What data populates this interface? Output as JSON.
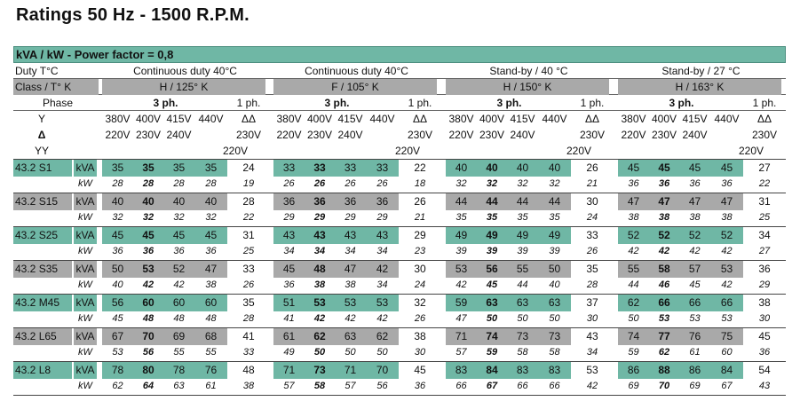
{
  "title": "Ratings 50 Hz - 1500 R.P.M.",
  "banner": "kVA / kW - Power factor = 0,8",
  "duty_label": "Duty T°C",
  "duties": [
    "Continuous duty 40°C",
    "Continuous duty 40°C",
    "Stand-by / 40 °C",
    "Stand-by / 27 °C"
  ],
  "class_label": "Class / T° K",
  "classes": [
    "H / 125° K",
    "F / 105° K",
    "H / 150° K",
    "H / 163° K"
  ],
  "phase_label": "Phase",
  "three_ph": "3 ph.",
  "one_ph": "1 ph.",
  "conn_y": "Y",
  "conn_delta": "Δ",
  "conn_yy": "YY",
  "y_volts": [
    "380V",
    "400V",
    "415V",
    "440V",
    "ΔΔ"
  ],
  "delta_volts": [
    "220V",
    "230V",
    "240V",
    "",
    "230V"
  ],
  "yy_volt": "220V",
  "unit_kva": "kVA",
  "unit_kw": "kW",
  "colors": {
    "accent": "#6fb7a5",
    "grey": "#a9a9a9"
  },
  "rows": [
    {
      "model": "43.2 S1",
      "kva": [
        [
          "35",
          "35",
          "35",
          "35",
          "24"
        ],
        [
          "33",
          "33",
          "33",
          "33",
          "22"
        ],
        [
          "40",
          "40",
          "40",
          "40",
          "26"
        ],
        [
          "45",
          "45",
          "45",
          "45",
          "27"
        ]
      ],
      "kw": [
        [
          "28",
          "28",
          "28",
          "28",
          "19"
        ],
        [
          "26",
          "26",
          "26",
          "26",
          "18"
        ],
        [
          "32",
          "32",
          "32",
          "32",
          "21"
        ],
        [
          "36",
          "36",
          "36",
          "36",
          "22"
        ]
      ]
    },
    {
      "model": "43.2 S15",
      "kva": [
        [
          "40",
          "40",
          "40",
          "40",
          "28"
        ],
        [
          "36",
          "36",
          "36",
          "36",
          "26"
        ],
        [
          "44",
          "44",
          "44",
          "44",
          "30"
        ],
        [
          "47",
          "47",
          "47",
          "47",
          "31"
        ]
      ],
      "kw": [
        [
          "32",
          "32",
          "32",
          "32",
          "22"
        ],
        [
          "29",
          "29",
          "29",
          "29",
          "21"
        ],
        [
          "35",
          "35",
          "35",
          "35",
          "24"
        ],
        [
          "38",
          "38",
          "38",
          "38",
          "25"
        ]
      ]
    },
    {
      "model": "43.2 S25",
      "kva": [
        [
          "45",
          "45",
          "45",
          "45",
          "31"
        ],
        [
          "43",
          "43",
          "43",
          "43",
          "29"
        ],
        [
          "49",
          "49",
          "49",
          "49",
          "33"
        ],
        [
          "52",
          "52",
          "52",
          "52",
          "34"
        ]
      ],
      "kw": [
        [
          "36",
          "36",
          "36",
          "36",
          "25"
        ],
        [
          "34",
          "34",
          "34",
          "34",
          "23"
        ],
        [
          "39",
          "39",
          "39",
          "39",
          "26"
        ],
        [
          "42",
          "42",
          "42",
          "42",
          "27"
        ]
      ]
    },
    {
      "model": "43.2 S35",
      "kva": [
        [
          "50",
          "53",
          "52",
          "47",
          "33"
        ],
        [
          "45",
          "48",
          "47",
          "42",
          "30"
        ],
        [
          "53",
          "56",
          "55",
          "50",
          "35"
        ],
        [
          "55",
          "58",
          "57",
          "53",
          "36"
        ]
      ],
      "kw": [
        [
          "40",
          "42",
          "42",
          "38",
          "26"
        ],
        [
          "36",
          "38",
          "38",
          "34",
          "24"
        ],
        [
          "42",
          "45",
          "44",
          "40",
          "28"
        ],
        [
          "44",
          "46",
          "45",
          "42",
          "29"
        ]
      ]
    },
    {
      "model": "43.2 M45",
      "kva": [
        [
          "56",
          "60",
          "60",
          "60",
          "35"
        ],
        [
          "51",
          "53",
          "53",
          "53",
          "32"
        ],
        [
          "59",
          "63",
          "63",
          "63",
          "37"
        ],
        [
          "62",
          "66",
          "66",
          "66",
          "38"
        ]
      ],
      "kw": [
        [
          "45",
          "48",
          "48",
          "48",
          "28"
        ],
        [
          "41",
          "42",
          "42",
          "42",
          "26"
        ],
        [
          "47",
          "50",
          "50",
          "50",
          "30"
        ],
        [
          "50",
          "53",
          "53",
          "53",
          "30"
        ]
      ]
    },
    {
      "model": "43.2 L65",
      "kva": [
        [
          "67",
          "70",
          "69",
          "68",
          "41"
        ],
        [
          "61",
          "62",
          "63",
          "62",
          "38"
        ],
        [
          "71",
          "74",
          "73",
          "73",
          "43"
        ],
        [
          "74",
          "77",
          "76",
          "75",
          "45"
        ]
      ],
      "kw": [
        [
          "53",
          "56",
          "55",
          "55",
          "33"
        ],
        [
          "49",
          "50",
          "50",
          "50",
          "30"
        ],
        [
          "57",
          "59",
          "58",
          "58",
          "34"
        ],
        [
          "59",
          "62",
          "61",
          "60",
          "36"
        ]
      ]
    },
    {
      "model": "43.2 L8",
      "kva": [
        [
          "78",
          "80",
          "78",
          "76",
          "48"
        ],
        [
          "71",
          "73",
          "71",
          "70",
          "45"
        ],
        [
          "83",
          "84",
          "83",
          "83",
          "53"
        ],
        [
          "86",
          "88",
          "86",
          "84",
          "54"
        ]
      ],
      "kw": [
        [
          "62",
          "64",
          "63",
          "61",
          "38"
        ],
        [
          "57",
          "58",
          "57",
          "56",
          "36"
        ],
        [
          "66",
          "67",
          "66",
          "66",
          "42"
        ],
        [
          "69",
          "70",
          "69",
          "67",
          "43"
        ]
      ]
    }
  ]
}
